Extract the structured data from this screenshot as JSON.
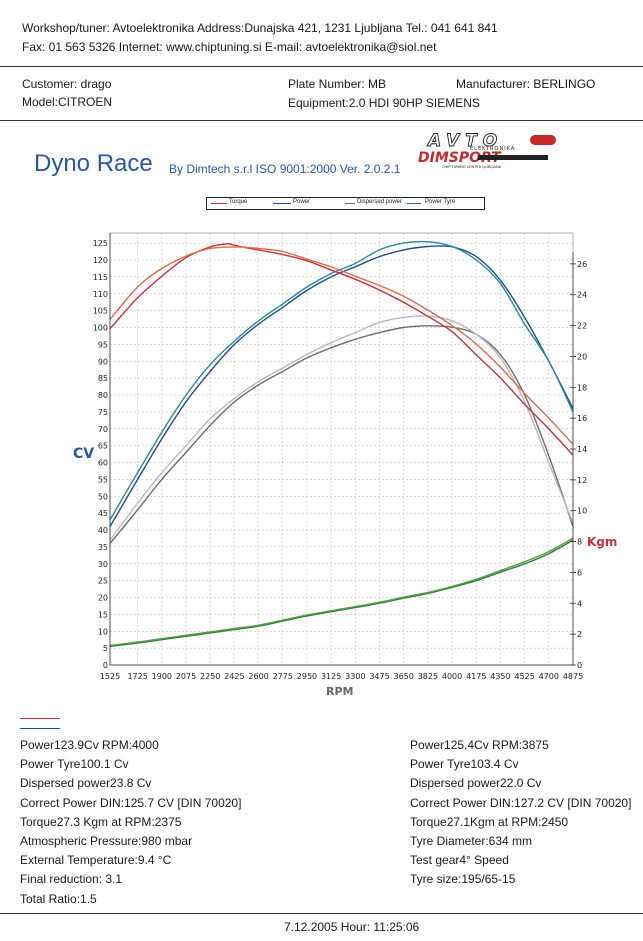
{
  "header": {
    "workshop_line": "Workshop/tuner: Avtoelektronika   Address:Dunajska 421, 1231 Ljubljana   Tel.: 041 641 841",
    "contact_line": "Fax: 01 563 5326   Internet: www.chiptuning.si   E-mail: avtoelektronika@siol.net"
  },
  "vehicle": {
    "customer": "Customer:   drago",
    "model": "Model:CITROEN",
    "plate": "Plate Number: MB",
    "equipment": "Equipment:2.0 HDI 90HP SIEMENS",
    "manufacturer": "Manufacturer: BERLINGO"
  },
  "brand": {
    "title": "Dyno Race",
    "subtitle": "By Dimtech s.r.l  ISO 9001:2000  Ver. 2.0.2.1",
    "logo_text": "AVTO",
    "logo_sub": "ELEKTRONIKA",
    "logo_dim": "DIMSPORT",
    "logo_tag": "CHIP TUNING CENTER LJUBLJANA"
  },
  "chart_data": {
    "type": "line",
    "xlabel": "RPM",
    "ylabel_left": "CV",
    "ylabel_right": "Kgm",
    "xlim": [
      1525,
      4875
    ],
    "ylim_left": [
      0,
      128
    ],
    "ylim_right": [
      0,
      28
    ],
    "x_ticks": [
      1525,
      1725,
      1900,
      2075,
      2250,
      2425,
      2600,
      2775,
      2950,
      3125,
      3300,
      3475,
      3650,
      3825,
      4000,
      4175,
      4350,
      4525,
      4700,
      4875
    ],
    "y_ticks_left": [
      0,
      5,
      10,
      15,
      20,
      25,
      30,
      35,
      40,
      45,
      50,
      55,
      60,
      65,
      70,
      75,
      80,
      85,
      90,
      95,
      100,
      105,
      110,
      115,
      120,
      125
    ],
    "y_ticks_right": [
      0,
      2,
      4,
      6,
      8,
      10,
      12,
      14,
      16,
      18,
      20,
      22,
      24,
      26
    ],
    "legend": [
      "Torque",
      "Power",
      "Dispersed power",
      "Power Tyre"
    ],
    "colors": {
      "torque": "#c8303a",
      "torque_b": "#e06a4a",
      "power": "#1f4d9c",
      "power_b": "#2a8a92",
      "dispersed": "#6e6e6e",
      "dispersed_b": "#b8b8b8",
      "tyre": "#2f7f3a",
      "tyre_b": "#5a9a4a",
      "grid": "#b8b8b8"
    },
    "series": [
      {
        "name": "Power",
        "axis": "left",
        "color_key": "power",
        "x": [
          1525,
          1725,
          1900,
          2075,
          2250,
          2425,
          2600,
          2775,
          2950,
          3125,
          3300,
          3475,
          3650,
          3825,
          4000,
          4175,
          4350,
          4525,
          4700,
          4875
        ],
        "y": [
          41,
          55,
          67,
          78,
          87,
          95,
          101,
          106,
          111,
          115,
          118,
          121,
          123,
          124,
          123.9,
          121,
          114,
          103,
          90,
          76
        ]
      },
      {
        "name": "Power",
        "axis": "left",
        "color_key": "power_b",
        "x": [
          1525,
          1725,
          1900,
          2075,
          2250,
          2425,
          2600,
          2775,
          2950,
          3125,
          3300,
          3475,
          3650,
          3825,
          4000,
          4175,
          4350,
          4525,
          4700,
          4875
        ],
        "y": [
          43,
          57,
          69,
          80,
          89,
          96,
          102,
          107,
          112,
          116,
          119,
          123,
          125,
          125.4,
          124,
          120,
          113,
          101,
          90,
          75
        ]
      },
      {
        "name": "Dispersed power",
        "axis": "left",
        "color_key": "dispersed",
        "x": [
          1525,
          1725,
          1900,
          2075,
          2250,
          2425,
          2600,
          2775,
          2950,
          3125,
          3300,
          3475,
          3650,
          3825,
          4000,
          4175,
          4350,
          4525,
          4700,
          4875
        ],
        "y": [
          36,
          46,
          55,
          63,
          71,
          78,
          83,
          87,
          91,
          94,
          96.5,
          98.5,
          100,
          100.5,
          100.1,
          98,
          92,
          80,
          62,
          41
        ]
      },
      {
        "name": "Dispersed power",
        "axis": "left",
        "color_key": "dispersed_b",
        "x": [
          1525,
          1725,
          1900,
          2075,
          2250,
          2425,
          2600,
          2775,
          2950,
          3125,
          3300,
          3475,
          3650,
          3825,
          4000,
          4175,
          4350,
          4525,
          4700,
          4875
        ],
        "y": [
          37,
          48,
          57,
          65,
          73,
          79,
          84,
          88,
          92,
          95.5,
          98.5,
          101.5,
          103,
          103.4,
          102,
          98,
          91,
          78,
          60,
          42
        ]
      },
      {
        "name": "Torque",
        "axis": "right",
        "color_key": "torque",
        "x": [
          1525,
          1725,
          1900,
          2075,
          2250,
          2375,
          2425,
          2600,
          2775,
          2950,
          3125,
          3300,
          3475,
          3650,
          3825,
          4000,
          4175,
          4350,
          4525,
          4700,
          4875
        ],
        "y": [
          21.8,
          23.8,
          25.2,
          26.4,
          27.1,
          27.3,
          27.2,
          26.9,
          26.6,
          26.2,
          25.6,
          25,
          24.3,
          23.5,
          22.6,
          21.6,
          20.1,
          18.6,
          16.9,
          15.3,
          13.6
        ]
      },
      {
        "name": "Torque",
        "axis": "right",
        "color_key": "torque_b",
        "x": [
          1525,
          1725,
          1900,
          2075,
          2250,
          2450,
          2600,
          2775,
          2950,
          3125,
          3300,
          3475,
          3650,
          3825,
          4000,
          4175,
          4350,
          4525,
          4700,
          4875
        ],
        "y": [
          22.4,
          24.5,
          25.7,
          26.5,
          27,
          27.1,
          27,
          26.8,
          26.3,
          25.8,
          25.2,
          24.6,
          23.9,
          23,
          22,
          20.8,
          19.3,
          17.6,
          16,
          14.3
        ]
      },
      {
        "name": "Power Tyre",
        "axis": "left",
        "color_key": "tyre",
        "x": [
          1525,
          1725,
          1900,
          2075,
          2250,
          2425,
          2600,
          2775,
          2950,
          3125,
          3300,
          3475,
          3650,
          3825,
          4000,
          4175,
          4350,
          4525,
          4700,
          4875
        ],
        "y": [
          5.5,
          6.5,
          7.5,
          8.5,
          9.5,
          10.5,
          11.5,
          13,
          14.5,
          15.8,
          17,
          18.3,
          19.8,
          21.2,
          23,
          25,
          27.5,
          30,
          33,
          37
        ]
      },
      {
        "name": "Power Tyre",
        "axis": "left",
        "color_key": "tyre_b",
        "x": [
          1525,
          1725,
          1900,
          2075,
          2250,
          2425,
          2600,
          2775,
          2950,
          3125,
          3300,
          3475,
          3650,
          3825,
          4000,
          4175,
          4350,
          4525,
          4700,
          4875
        ],
        "y": [
          5.8,
          6.8,
          7.8,
          8.8,
          9.8,
          10.8,
          11.8,
          13.3,
          14.8,
          16.1,
          17.3,
          18.6,
          20.1,
          21.5,
          23.3,
          25.4,
          28,
          30.6,
          33.6,
          37.6
        ]
      }
    ]
  },
  "report": {
    "left": [
      "Power123.9Cv RPM:4000",
      "Power Tyre100.1 Cv",
      "Dispersed power23.8 Cv",
      "Correct Power DIN:125.7 CV  [DIN 70020]",
      "Torque27.3 Kgm at RPM:2375",
      "Atmospheric Pressure:980 mbar",
      "External Temperature:9.4 °C",
      "Final reduction: 3.1",
      "Total Ratio:1.5"
    ],
    "right": [
      "Power125.4Cv RPM:3875",
      "Power Tyre103.4 Cv",
      "Dispersed power22.0 Cv",
      "Correct Power DIN:127.2 CV  [DIN 70020]",
      "Torque27.1Kgm at RPM:2450",
      "Tyre Diameter:634 mm",
      "Test gear4° Speed",
      "Tyre size:195/65-15"
    ]
  },
  "footer": {
    "datetime": "7.12.2005 Hour:  11:25:06"
  }
}
